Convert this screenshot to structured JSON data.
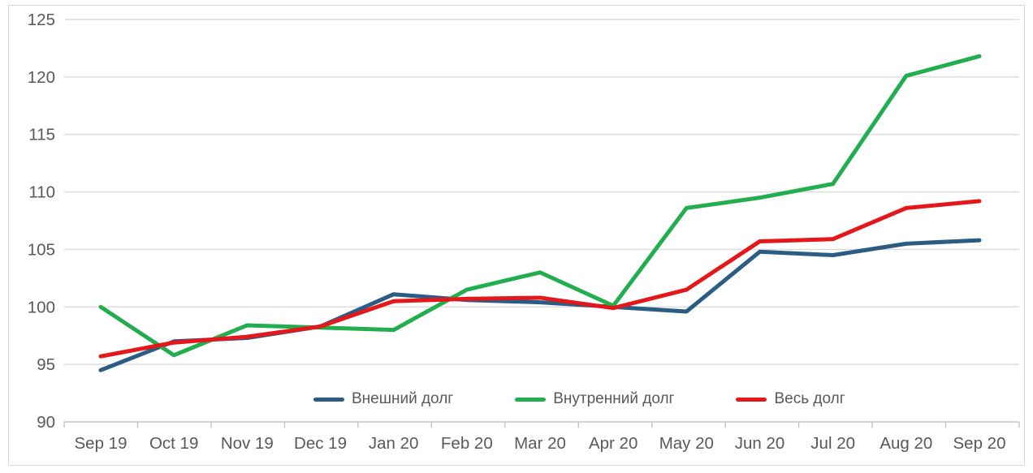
{
  "chart_data": {
    "type": "line",
    "title": "",
    "categories": [
      "Sep 19",
      "Oct 19",
      "Nov 19",
      "Dec 19",
      "Jan 20",
      "Feb 20",
      "Mar 20",
      "Apr 20",
      "May 20",
      "Jun 20",
      "Jul 20",
      "Aug 20",
      "Sep 20"
    ],
    "series": [
      {
        "name": "Внешний долг",
        "color": "#2A5C84",
        "values": [
          94.5,
          97.0,
          97.3,
          98.3,
          101.1,
          100.6,
          100.4,
          100.0,
          99.6,
          104.8,
          104.5,
          105.5,
          105.8
        ]
      },
      {
        "name": "Внутренний долг",
        "color": "#22AD4F",
        "values": [
          100.0,
          95.8,
          98.4,
          98.2,
          98.0,
          101.5,
          103.0,
          100.1,
          108.6,
          109.5,
          110.7,
          120.1,
          121.8
        ]
      },
      {
        "name": "Весь долг",
        "color": "#E4181B",
        "values": [
          95.7,
          96.9,
          97.4,
          98.3,
          100.5,
          100.7,
          100.8,
          99.9,
          101.5,
          105.7,
          105.9,
          108.6,
          109.2
        ]
      }
    ],
    "y_axis": {
      "min": 90,
      "max": 125,
      "step": 5,
      "tick_labels": [
        "90",
        "95",
        "100",
        "105",
        "110",
        "115",
        "120",
        "125"
      ]
    },
    "x_axis": {
      "tick_labels": [
        "Sep 19",
        "Oct 19",
        "Nov 19",
        "Dec 19",
        "Jan 20",
        "Feb 20",
        "Mar 20",
        "Apr 20",
        "May 20",
        "Jun 20",
        "Jul 20",
        "Aug 20",
        "Sep 20"
      ]
    },
    "grid": true,
    "legend_position": "bottom-inside",
    "colors": {
      "gridline": "#D9D9D9",
      "axis_line": "#BFBFBF",
      "axis_text": "#595959",
      "frame_border": "#D9D9D9",
      "background": "#FFFFFF"
    }
  }
}
